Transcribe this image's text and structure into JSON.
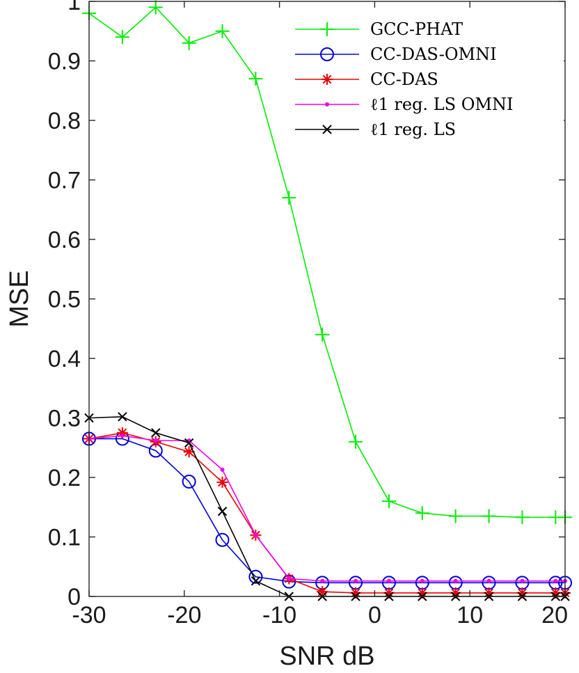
{
  "chart_data": {
    "type": "line",
    "title": "",
    "xlabel": "SNR  dB",
    "ylabel": "MSE",
    "xlim": [
      -30,
      20
    ],
    "ylim": [
      0,
      1
    ],
    "x_ticks": [
      "-30",
      "-20",
      "-10",
      "0",
      "10",
      "20"
    ],
    "y_ticks": [
      "0",
      "0.1",
      "0.2",
      "0.3",
      "0.4",
      "0.5",
      "0.6",
      "0.7",
      "0.8",
      "0.9",
      "1"
    ],
    "grid": false,
    "legend_position": "top-right",
    "x": [
      -30,
      -26.5,
      -23,
      -19.5,
      -16,
      -12.5,
      -9,
      -5.5,
      -2,
      1.5,
      5,
      8.5,
      12,
      15.5,
      19,
      20
    ],
    "series": [
      {
        "name": "GCC-PHAT",
        "color": "#00ee00",
        "marker": "plus",
        "values": [
          0.98,
          0.94,
          0.99,
          0.93,
          0.95,
          0.87,
          0.67,
          0.44,
          0.26,
          0.16,
          0.14,
          0.135,
          0.135,
          0.133,
          0.133,
          0.133
        ]
      },
      {
        "name": "CC-DAS-OMNI",
        "color": "#0000dd",
        "marker": "circle",
        "values": [
          0.265,
          0.265,
          0.245,
          0.193,
          0.095,
          0.033,
          0.025,
          0.023,
          0.023,
          0.023,
          0.023,
          0.023,
          0.023,
          0.023,
          0.023,
          0.023
        ]
      },
      {
        "name": "CC-DAS",
        "color": "#ee0000",
        "marker": "asterisk",
        "values": [
          0.265,
          0.275,
          0.26,
          0.243,
          0.192,
          0.103,
          0.03,
          0.008,
          0.006,
          0.006,
          0.006,
          0.006,
          0.006,
          0.006,
          0.006,
          0.006
        ]
      },
      {
        "name": "ℓ1 reg. LS OMNI",
        "color": "#ee00ee",
        "marker": "dot",
        "values": [
          0.265,
          0.27,
          0.262,
          0.262,
          0.213,
          0.103,
          0.03,
          0.026,
          0.026,
          0.026,
          0.026,
          0.026,
          0.026,
          0.026,
          0.026,
          0.026
        ]
      },
      {
        "name": "ℓ1 reg. LS",
        "color": "#000000",
        "marker": "x",
        "values": [
          0.3,
          0.302,
          0.275,
          0.258,
          0.143,
          0.026,
          0.0,
          0.0,
          0.0,
          0.0,
          0.0,
          0.0,
          0.0,
          0.0,
          0.0,
          0.0
        ]
      }
    ]
  }
}
